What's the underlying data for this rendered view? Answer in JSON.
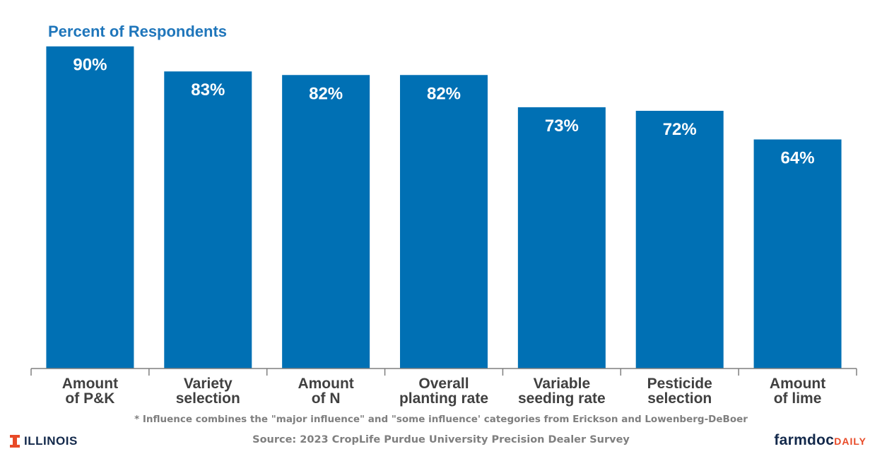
{
  "chart_data": {
    "type": "bar",
    "title": "Percent of Respondents",
    "categories": [
      [
        "Amount",
        "of P&K"
      ],
      [
        "Variety",
        "selection"
      ],
      [
        "Amount",
        "of N"
      ],
      [
        "Overall",
        "planting rate"
      ],
      [
        "Variable",
        "seeding rate"
      ],
      [
        "Pesticide",
        "selection"
      ],
      [
        "Amount",
        "of lime"
      ]
    ],
    "values": [
      90,
      83,
      82,
      82,
      73,
      72,
      64
    ],
    "data_labels": [
      "90%",
      "83%",
      "82%",
      "82%",
      "73%",
      "72%",
      "64%"
    ],
    "ylim": [
      0,
      100
    ],
    "grid": false,
    "bar_color": "#0070b4",
    "title_color": "#1f76bb"
  },
  "footnote": "* Influence combines the \"major influence\" and \"some influence' categories from Erickson and Lowenberg-DeBoer",
  "source": "Source: 2023 CropLife Purdue University Precision Dealer Survey",
  "logos": {
    "illinois": {
      "text": "ILLINOIS",
      "color": "#13294b",
      "icon": "illinois-block-i-icon",
      "icon_color": "#e84a27"
    },
    "farmdoc": {
      "text_main": "farmdoc",
      "text_accent": "DAILY",
      "color_main": "#13294b",
      "color_accent": "#e84a27"
    }
  }
}
